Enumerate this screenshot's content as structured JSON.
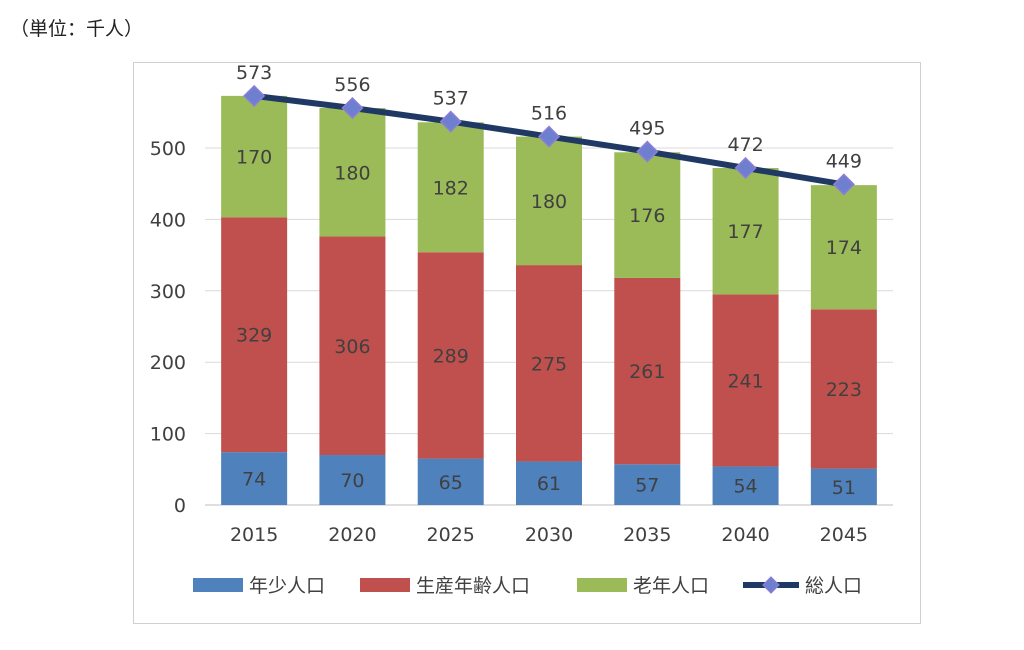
{
  "unit_label": "（単位：千人）",
  "colors": {
    "young": "#4f81bd",
    "working": "#c0504d",
    "elderly": "#9bbb59",
    "total_line": "#1f3864",
    "total_marker": "#6f7fd0"
  },
  "chart_data": {
    "type": "bar",
    "stacked": true,
    "categories": [
      "2015",
      "2020",
      "2025",
      "2030",
      "2035",
      "2040",
      "2045"
    ],
    "series": [
      {
        "name": "年少人口",
        "values": [
          74,
          70,
          65,
          61,
          57,
          54,
          51
        ]
      },
      {
        "name": "生産年齢人口",
        "values": [
          329,
          306,
          289,
          275,
          261,
          241,
          223
        ]
      },
      {
        "name": "老年人口",
        "values": [
          170,
          180,
          182,
          180,
          176,
          177,
          174
        ]
      }
    ],
    "line_series": {
      "name": "総人口",
      "values": [
        573,
        556,
        537,
        516,
        495,
        472,
        449
      ]
    },
    "yticks": [
      "0",
      "100",
      "200",
      "300",
      "400",
      "500"
    ],
    "ylim": [
      0,
      600
    ],
    "grid": true,
    "legend": "bottom"
  }
}
